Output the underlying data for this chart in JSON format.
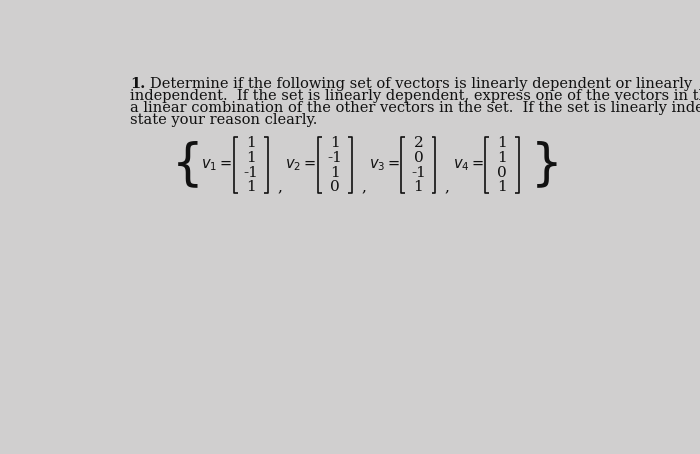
{
  "title_number": "1.",
  "lines": [
    "Determine if the following set of vectors is linearly dependent or linearly",
    "independent.  If the set is linearly dependent, express one of the vectors in the set as",
    "a linear combination of the other vectors in the set.  If the set is linearly independent,",
    "state your reason clearly."
  ],
  "vectors": [
    {
      "name": "v_1",
      "entries": [
        "1",
        "1",
        "-1",
        "1"
      ]
    },
    {
      "name": "v_2",
      "entries": [
        "1",
        "-1",
        "1",
        "0"
      ]
    },
    {
      "name": "v_3",
      "entries": [
        "2",
        "0",
        "-1",
        "1"
      ]
    },
    {
      "name": "v_4",
      "entries": [
        "1",
        "1",
        "0",
        "1"
      ]
    }
  ],
  "background_color": "#d0cfcf",
  "text_color": "#111111",
  "font_size_body": 10.5,
  "font_size_math": 11.5
}
